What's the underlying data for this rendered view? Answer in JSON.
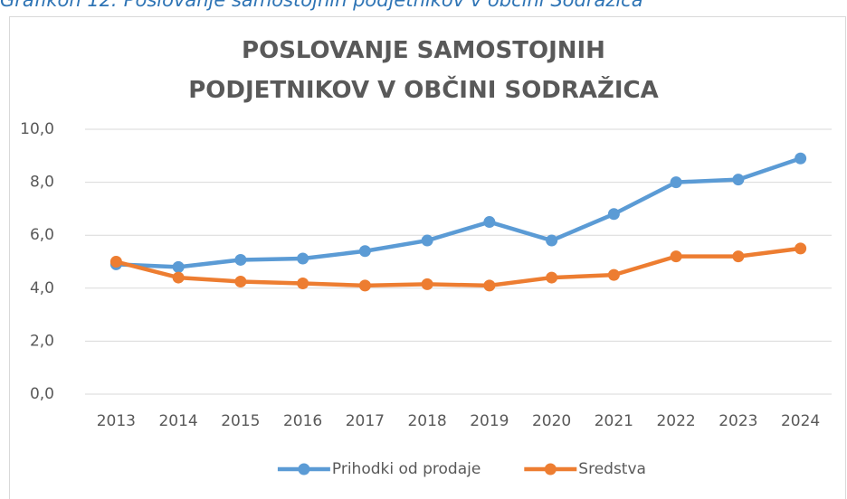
{
  "caption": "Grafikon 12: Poslovanje samostojnih podjetnikov v občini Sodražica",
  "chart_data": {
    "type": "line",
    "title": "POSLOVANJE SAMOSTOJNIH PODJETNIKOV V OBČINI SODRAŽICA",
    "categories": [
      "2013",
      "2014",
      "2015",
      "2016",
      "2017",
      "2018",
      "2019",
      "2020",
      "2021",
      "2022",
      "2023",
      "2024"
    ],
    "series": [
      {
        "name": "Prihodki od prodaje",
        "color": "#5b9bd5",
        "values": [
          4.9,
          4.8,
          5.07,
          5.12,
          5.4,
          5.8,
          6.5,
          5.8,
          6.8,
          8.0,
          8.1,
          8.9
        ]
      },
      {
        "name": "Sredstva",
        "color": "#ed7d31",
        "values": [
          5.0,
          4.4,
          4.25,
          4.18,
          4.1,
          4.15,
          4.1,
          4.4,
          4.5,
          5.2,
          5.2,
          5.5
        ]
      }
    ],
    "ylim": [
      0,
      10
    ],
    "yticks": [
      {
        "value": 0,
        "label": "0,0"
      },
      {
        "value": 2,
        "label": "2,0"
      },
      {
        "value": 4,
        "label": "4,0"
      },
      {
        "value": 6,
        "label": "6,0"
      },
      {
        "value": 8,
        "label": "8,0"
      },
      {
        "value": 10,
        "label": "10,0"
      }
    ],
    "grid": true,
    "legend": "bottom"
  }
}
